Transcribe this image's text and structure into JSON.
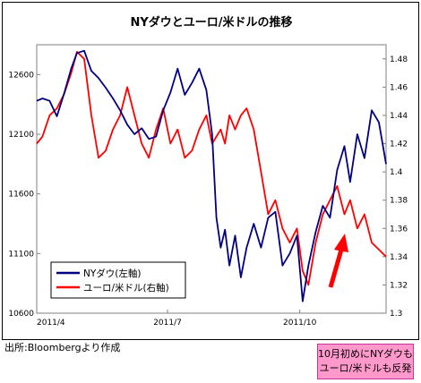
{
  "chart_data": {
    "type": "line",
    "title": "NYダウとユーロ/米ドルの推移",
    "x_ticks": [
      "2011/4",
      "2011/7",
      "2011/10"
    ],
    "y_left": {
      "min": 10600,
      "max": 12850,
      "ticks": [
        10600,
        11100,
        11600,
        12100,
        12600
      ]
    },
    "y_right": {
      "min": 1.3,
      "max": 1.49,
      "ticks": [
        "1.3",
        "1.32",
        "1.34",
        "1.36",
        "1.38",
        "1.4",
        "1.42",
        "1.44",
        "1.46",
        "1.48"
      ]
    },
    "grid": false,
    "legend_position": "bottom-left",
    "series": [
      {
        "name": "NYダウ(左軸)",
        "axis": "left",
        "color": "#000080",
        "x": [
          "2011-04-01",
          "2011-04-05",
          "2011-04-10",
          "2011-04-15",
          "2011-04-20",
          "2011-04-25",
          "2011-04-29",
          "2011-05-04",
          "2011-05-09",
          "2011-05-14",
          "2011-05-19",
          "2011-05-24",
          "2011-05-29",
          "2011-06-03",
          "2011-06-08",
          "2011-06-13",
          "2011-06-18",
          "2011-06-23",
          "2011-06-28",
          "2011-07-03",
          "2011-07-08",
          "2011-07-13",
          "2011-07-18",
          "2011-07-23",
          "2011-07-28",
          "2011-08-01",
          "2011-08-04",
          "2011-08-07",
          "2011-08-10",
          "2011-08-13",
          "2011-08-17",
          "2011-08-21",
          "2011-08-25",
          "2011-08-30",
          "2011-09-04",
          "2011-09-09",
          "2011-09-14",
          "2011-09-19",
          "2011-09-24",
          "2011-09-29",
          "2011-10-03",
          "2011-10-07",
          "2011-10-12",
          "2011-10-17",
          "2011-10-22",
          "2011-10-27",
          "2011-11-01",
          "2011-11-05",
          "2011-11-10",
          "2011-11-15",
          "2011-11-20",
          "2011-11-25",
          "2011-11-30"
        ],
        "values": [
          12380,
          12400,
          12380,
          12250,
          12440,
          12650,
          12780,
          12800,
          12630,
          12570,
          12490,
          12400,
          12300,
          12180,
          12100,
          12150,
          12060,
          12080,
          12300,
          12450,
          12650,
          12430,
          12530,
          12650,
          12470,
          12100,
          11400,
          11150,
          11300,
          11000,
          11250,
          10900,
          11150,
          11350,
          11150,
          11400,
          11450,
          11000,
          11100,
          11250,
          10700,
          11000,
          11280,
          11500,
          11400,
          11800,
          12000,
          11700,
          12100,
          11900,
          12300,
          12200,
          11850
        ]
      },
      {
        "name": "ユーロ/米ドル(右軸)",
        "axis": "right",
        "color": "#ff0000",
        "x": [
          "2011-04-01",
          "2011-04-05",
          "2011-04-10",
          "2011-04-15",
          "2011-04-20",
          "2011-04-25",
          "2011-04-29",
          "2011-05-04",
          "2011-05-09",
          "2011-05-14",
          "2011-05-19",
          "2011-05-24",
          "2011-05-29",
          "2011-06-03",
          "2011-06-08",
          "2011-06-13",
          "2011-06-18",
          "2011-06-23",
          "2011-06-28",
          "2011-07-03",
          "2011-07-08",
          "2011-07-13",
          "2011-07-18",
          "2011-07-23",
          "2011-07-28",
          "2011-08-01",
          "2011-08-04",
          "2011-08-07",
          "2011-08-10",
          "2011-08-13",
          "2011-08-17",
          "2011-08-21",
          "2011-08-25",
          "2011-08-30",
          "2011-09-04",
          "2011-09-09",
          "2011-09-14",
          "2011-09-19",
          "2011-09-24",
          "2011-09-29",
          "2011-10-03",
          "2011-10-07",
          "2011-10-12",
          "2011-10-17",
          "2011-10-22",
          "2011-10-27",
          "2011-11-01",
          "2011-11-05",
          "2011-11-10",
          "2011-11-15",
          "2011-11-20",
          "2011-11-25",
          "2011-11-30"
        ],
        "values": [
          1.42,
          1.425,
          1.44,
          1.445,
          1.455,
          1.47,
          1.485,
          1.48,
          1.44,
          1.41,
          1.415,
          1.43,
          1.44,
          1.46,
          1.44,
          1.42,
          1.41,
          1.43,
          1.445,
          1.42,
          1.43,
          1.41,
          1.415,
          1.43,
          1.44,
          1.42,
          1.425,
          1.43,
          1.42,
          1.44,
          1.43,
          1.44,
          1.445,
          1.43,
          1.4,
          1.37,
          1.38,
          1.36,
          1.35,
          1.36,
          1.33,
          1.32,
          1.35,
          1.37,
          1.38,
          1.39,
          1.37,
          1.38,
          1.36,
          1.37,
          1.35,
          1.345,
          1.34
        ]
      }
    ]
  },
  "source_note": "出所:Bloombergより作成",
  "callout_text": [
    "10月初めにNYダウも",
    "ユーロ/米ドルも反発"
  ],
  "arrow_color": "#ff0000",
  "callout_color": "#ff99cc"
}
